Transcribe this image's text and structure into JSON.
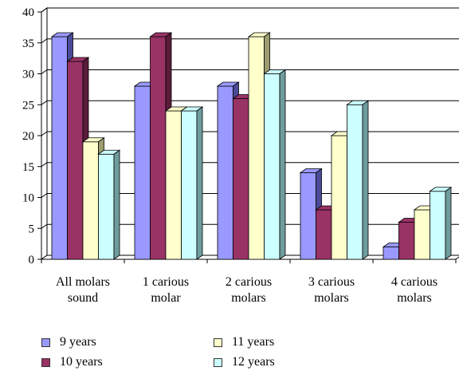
{
  "chart_data": {
    "type": "bar",
    "style": "3d-clustered",
    "categories": [
      [
        "All molars",
        "sound"
      ],
      [
        "1 carious",
        "molar"
      ],
      [
        "2 carious",
        "molars"
      ],
      [
        "3 carious",
        "molars"
      ],
      [
        "4 carious",
        "molars"
      ]
    ],
    "series": [
      {
        "name": "9 years",
        "values": [
          36,
          28,
          28,
          14,
          2
        ],
        "color": "#9999ff",
        "side": "#4b4b99"
      },
      {
        "name": "10 years",
        "values": [
          32,
          36,
          26,
          8,
          6
        ],
        "color": "#993366",
        "side": "#5a1c3b"
      },
      {
        "name": "11 years",
        "values": [
          19,
          24,
          36,
          20,
          8
        ],
        "color": "#ffffcc",
        "side": "#9c9c70"
      },
      {
        "name": "12 years",
        "values": [
          17,
          24,
          30,
          25,
          11
        ],
        "color": "#ccffff",
        "side": "#6f9c9c"
      }
    ],
    "yticks": [
      0,
      5,
      10,
      15,
      20,
      25,
      30,
      35,
      40
    ],
    "ylim": [
      0,
      40
    ],
    "grid": true,
    "legend_position": "bottom",
    "title": "",
    "xlabel": "",
    "ylabel": ""
  }
}
